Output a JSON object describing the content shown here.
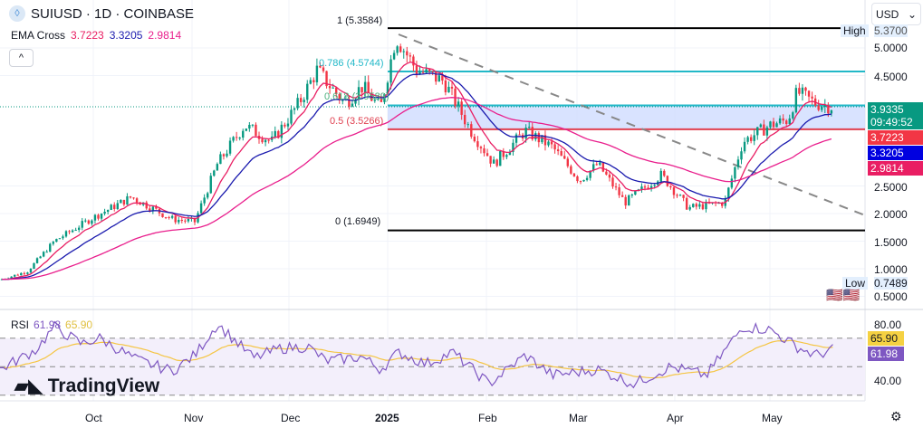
{
  "header": {
    "symbol": "SUIUSD · 1D · COINBASE",
    "logo_icon": "sui-drop-icon"
  },
  "indicator": {
    "name": "EMA Cross",
    "values": [
      "3.7223",
      "3.3205",
      "2.9814"
    ],
    "colors": [
      "#e91e63",
      "#1a1aae",
      "#e91e8c"
    ]
  },
  "currency": "USD",
  "price_axis": {
    "ticks": [
      "5.0000",
      "4.5000",
      "2.5000",
      "2.0000",
      "1.5000",
      "1.0000",
      "0.5000"
    ],
    "high_label": "High",
    "high_value": "5.3700",
    "low_label": "Low",
    "low_value": "0.7489",
    "last_price": "3.9335",
    "countdown": "09:49:52",
    "last_color": "#089981"
  },
  "fib": {
    "levels": [
      "1 (5.3584)",
      "0.786 (4.5744)",
      "0.618 (3.9589)",
      "0.5 (3.5266)",
      "0 (1.6949)"
    ]
  },
  "rsi": {
    "name": "RSI",
    "value": "61.98",
    "ma": "65.90",
    "ticks": [
      "80.00",
      "40.00"
    ],
    "color": "#7e57c2",
    "ma_color": "#f5c542"
  },
  "time_axis": [
    "Oct",
    "Nov",
    "Dec",
    "2025",
    "Feb",
    "Mar",
    "Apr",
    "May"
  ],
  "brand": "TradingView",
  "chart_data": {
    "type": "candlestick",
    "price_path": [
      [
        0,
        0.8
      ],
      [
        30,
        0.95
      ],
      [
        60,
        1.5
      ],
      [
        100,
        1.9
      ],
      [
        145,
        2.3
      ],
      [
        190,
        1.9
      ],
      [
        215,
        1.85
      ],
      [
        240,
        2.9
      ],
      [
        270,
        3.6
      ],
      [
        300,
        3.3
      ],
      [
        330,
        4.0
      ],
      [
        350,
        4.6
      ],
      [
        380,
        4.0
      ],
      [
        400,
        4.3
      ],
      [
        420,
        3.9
      ],
      [
        437,
        5.2
      ],
      [
        460,
        4.6
      ],
      [
        490,
        4.4
      ],
      [
        520,
        3.5
      ],
      [
        545,
        2.9
      ],
      [
        580,
        3.5
      ],
      [
        610,
        3.2
      ],
      [
        640,
        2.6
      ],
      [
        660,
        2.9
      ],
      [
        690,
        2.2
      ],
      [
        730,
        2.7
      ],
      [
        760,
        2.1
      ],
      [
        800,
        2.2
      ],
      [
        820,
        3.3
      ],
      [
        850,
        3.6
      ],
      [
        870,
        3.7
      ],
      [
        880,
        4.2
      ],
      [
        900,
        4.0
      ],
      [
        920,
        3.93
      ]
    ],
    "rsi_path": [
      [
        0,
        48
      ],
      [
        40,
        62
      ],
      [
        60,
        78
      ],
      [
        90,
        66
      ],
      [
        110,
        70
      ],
      [
        150,
        55
      ],
      [
        190,
        47
      ],
      [
        215,
        58
      ],
      [
        240,
        80
      ],
      [
        280,
        56
      ],
      [
        310,
        63
      ],
      [
        340,
        64
      ],
      [
        360,
        54
      ],
      [
        400,
        57
      ],
      [
        420,
        48
      ],
      [
        440,
        60
      ],
      [
        470,
        52
      ],
      [
        500,
        60
      ],
      [
        540,
        38
      ],
      [
        580,
        58
      ],
      [
        610,
        44
      ],
      [
        660,
        48
      ],
      [
        700,
        38
      ],
      [
        740,
        50
      ],
      [
        780,
        44
      ],
      [
        820,
        78
      ],
      [
        850,
        76
      ],
      [
        880,
        64
      ],
      [
        900,
        58
      ],
      [
        920,
        62
      ]
    ]
  }
}
